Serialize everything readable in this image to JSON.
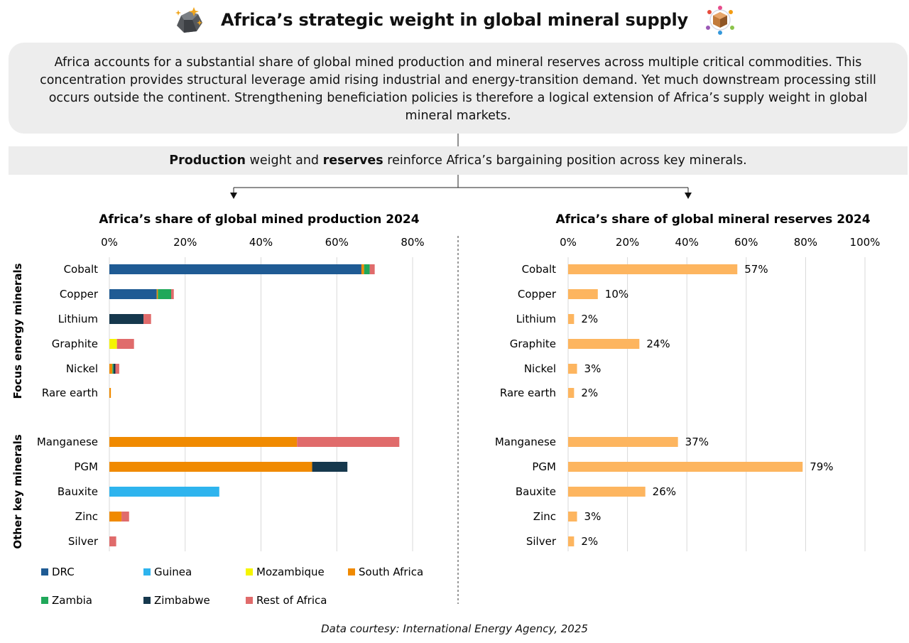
{
  "header": {
    "title": "Africa’s strategic weight in global mineral supply",
    "left_icon": "ore-rocks-icon",
    "right_icon": "mineral-network-icon"
  },
  "summary": {
    "text": "Africa accounts for a substantial share of global mined production and mineral reserves across multiple critical commodities. This concentration provides structural leverage amid rising industrial and energy-transition demand. Yet much downstream processing still occurs outside the continent. Strengthening beneficiation policies is therefore a logical extension of Africa’s supply weight in global mineral markets."
  },
  "thesis": {
    "bold1": "Production",
    "mid": " weight and ",
    "bold2": "reserves",
    "end": " reinforce Africa’s bargaining position across key minerals."
  },
  "groups": [
    {
      "label": "Focus energy minerals",
      "minerals": [
        "Cobalt",
        "Copper",
        "Lithium",
        "Graphite",
        "Nickel",
        "Rare earth"
      ]
    },
    {
      "label": "Other key minerals",
      "minerals": [
        "Manganese",
        "PGM",
        "Bauxite",
        "Zinc",
        "Silver"
      ]
    }
  ],
  "colors": {
    "DRC": "#1f5b94",
    "Guinea": "#2eb4ee",
    "Mozambique": "#f5f500",
    "South Africa": "#f08a00",
    "Zambia": "#20a85a",
    "Zimbabwe": "#16384d",
    "Rest of Africa": "#e06b6b",
    "reserves": "#fdb55f"
  },
  "chart_data": [
    {
      "type": "bar",
      "orientation": "horizontal",
      "stacked": true,
      "title": "Africa’s share of global mined production 2024",
      "xlim": [
        0,
        80
      ],
      "ticks": [
        "0%",
        "20%",
        "40%",
        "60%",
        "80%"
      ],
      "grid": true,
      "legend_position": "bottom",
      "categories": [
        "Cobalt",
        "Copper",
        "Lithium",
        "Graphite",
        "Nickel",
        "Rare earth",
        "Manganese",
        "PGM",
        "Bauxite",
        "Zinc",
        "Silver"
      ],
      "series": [
        {
          "name": "DRC",
          "values": [
            66.5,
            12.5,
            0,
            0,
            0,
            0,
            0,
            0,
            0,
            0,
            0
          ]
        },
        {
          "name": "Guinea",
          "values": [
            0,
            0,
            0,
            0,
            0,
            0,
            0,
            0,
            29,
            0,
            0
          ]
        },
        {
          "name": "Mozambique",
          "values": [
            0,
            0,
            0,
            2,
            0,
            0,
            0,
            0,
            0,
            0,
            0
          ]
        },
        {
          "name": "South Africa",
          "values": [
            0.7,
            0.3,
            0,
            0,
            0.8,
            0.4,
            49.5,
            53.5,
            0,
            3.2,
            0
          ]
        },
        {
          "name": "Zambia",
          "values": [
            1.5,
            3.5,
            0,
            0,
            0.3,
            0,
            0,
            0,
            0,
            0,
            0
          ]
        },
        {
          "name": "Zimbabwe",
          "values": [
            0,
            0,
            9,
            0,
            0.5,
            0,
            0,
            9.3,
            0,
            0,
            0
          ]
        },
        {
          "name": "Rest of Africa",
          "values": [
            1.3,
            0.7,
            2,
            4.5,
            1,
            0,
            27,
            0,
            0,
            2,
            1.8
          ]
        }
      ]
    },
    {
      "type": "bar",
      "orientation": "horizontal",
      "title": "Africa’s share of global mineral reserves 2024",
      "xlim": [
        0,
        100
      ],
      "ticks": [
        "0%",
        "20%",
        "40%",
        "60%",
        "80%",
        "100%"
      ],
      "grid": true,
      "categories": [
        "Cobalt",
        "Copper",
        "Lithium",
        "Graphite",
        "Nickel",
        "Rare earth",
        "Manganese",
        "PGM",
        "Bauxite",
        "Zinc",
        "Silver"
      ],
      "values": [
        57,
        10,
        2,
        24,
        3,
        2,
        37,
        79,
        26,
        3,
        2
      ],
      "labels": [
        "57%",
        "10%",
        "2%",
        "24%",
        "3%",
        "2%",
        "37%",
        "79%",
        "26%",
        "3%",
        "2%"
      ]
    }
  ],
  "legend": {
    "items": [
      "DRC",
      "Guinea",
      "Mozambique",
      "South Africa",
      "Zambia",
      "Zimbabwe",
      "Rest of Africa"
    ]
  },
  "footer": {
    "credit": "Data courtesy: International Energy Agency, 2025"
  }
}
